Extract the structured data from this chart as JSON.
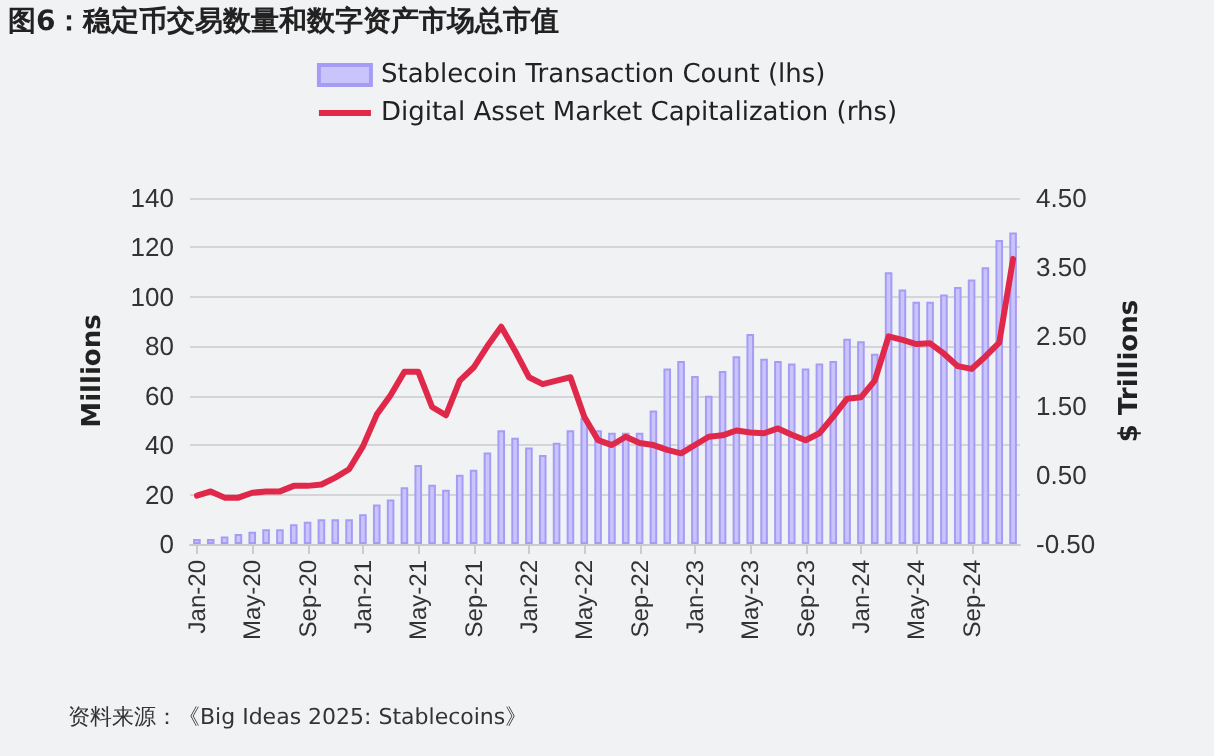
{
  "chart_data": {
    "type": "bar",
    "title": "图6：稳定币交易数量和数字资产市场总市值",
    "ylabel": "Millions",
    "y2label": "$ Trillions",
    "annotations": [
      "资料来源：《Big Ideas 2025: Stablecoins》"
    ],
    "categories": [
      "Jan-20",
      null,
      null,
      null,
      "May-20",
      null,
      null,
      null,
      "Sep-20",
      null,
      null,
      null,
      "Jan-21",
      null,
      null,
      null,
      "May-21",
      null,
      null,
      null,
      "Sep-21",
      null,
      null,
      null,
      "Jan-22",
      null,
      null,
      null,
      "May-22",
      null,
      null,
      null,
      "Sep-22",
      null,
      null,
      null,
      "Jan-23",
      null,
      null,
      null,
      "May-23",
      null,
      null,
      null,
      "Sep-23",
      null,
      null,
      null,
      "Jan-24",
      null,
      null,
      null,
      "May-24",
      null,
      null,
      null,
      "Sep-24",
      null,
      null,
      null
    ],
    "series": [
      {
        "name": "Stablecoin Transaction Count (lhs)",
        "color": "#c9c5fb",
        "values": [
          2,
          2,
          3,
          4,
          5,
          6,
          6,
          8,
          9,
          10,
          10,
          10,
          12,
          16,
          18,
          23,
          32,
          24,
          22,
          28,
          30,
          37,
          46,
          43,
          39,
          36,
          41,
          46,
          51,
          46,
          45,
          45,
          45,
          54,
          71,
          74,
          68,
          60,
          70,
          76,
          85,
          75,
          74,
          73,
          71,
          73,
          74,
          83,
          82,
          77,
          110,
          103,
          98,
          98,
          101,
          104,
          107,
          112,
          123,
          126
        ]
      },
      {
        "name": "Digital Asset Market Capitalization (rhs)",
        "type": "line",
        "axis": "y2",
        "color": "#e0294a",
        "values": [
          0.2,
          0.26,
          0.17,
          0.17,
          0.24,
          0.26,
          0.26,
          0.34,
          0.34,
          0.36,
          0.46,
          0.58,
          0.91,
          1.37,
          1.65,
          1.99,
          1.99,
          1.48,
          1.36,
          1.86,
          2.05,
          2.36,
          2.64,
          2.29,
          1.91,
          1.81,
          1.86,
          1.91,
          1.34,
          1.0,
          0.93,
          1.05,
          0.96,
          0.93,
          0.86,
          0.81,
          0.93,
          1.05,
          1.07,
          1.14,
          1.11,
          1.1,
          1.17,
          1.08,
          1.0,
          1.1,
          1.34,
          1.6,
          1.62,
          1.86,
          2.5,
          2.45,
          2.39,
          2.4,
          2.25,
          2.07,
          2.03,
          2.21,
          2.41,
          3.62
        ]
      }
    ],
    "ylim": [
      0,
      140
    ],
    "yticks": [
      0,
      20,
      40,
      60,
      80,
      100,
      120,
      140
    ],
    "y2lim": [
      -0.5,
      4.5
    ],
    "y2ticks": [
      {
        "value": -0.5,
        "label": "-0.50"
      },
      {
        "value": 0.5,
        "label": "0.50"
      },
      {
        "value": 1.5,
        "label": "1.50"
      },
      {
        "value": 2.5,
        "label": "2.50"
      },
      {
        "value": 3.5,
        "label": "3.50"
      },
      {
        "value": 4.5,
        "label": "4.50"
      }
    ],
    "grid": "y",
    "legend": "top",
    "marker": "none",
    "line_style": "solid"
  }
}
